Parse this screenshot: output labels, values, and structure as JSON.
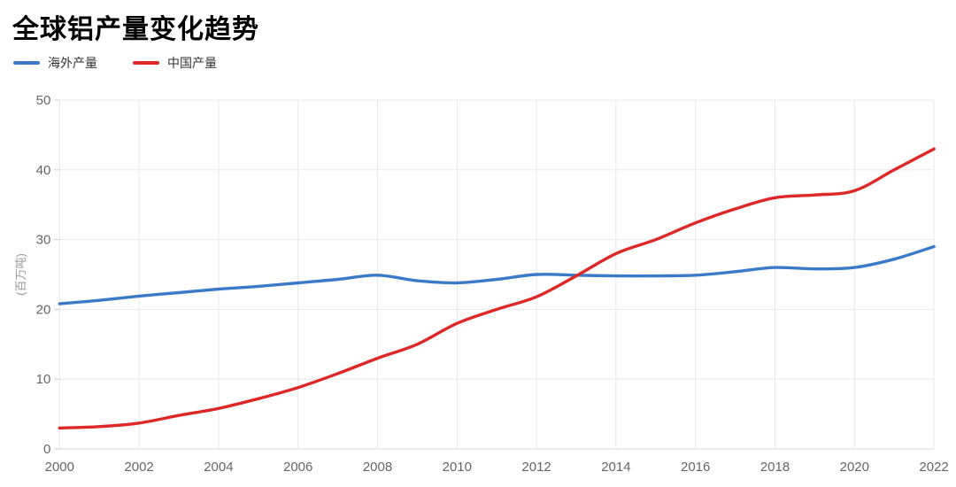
{
  "chart_data": {
    "type": "line",
    "title": "全球铝产量变化趋势",
    "xlabel": "",
    "ylabel": "(百万吨)",
    "xlim": [
      2000,
      2022
    ],
    "ylim": [
      0,
      50
    ],
    "y_ticks": [
      0,
      10,
      20,
      30,
      40,
      50
    ],
    "x_tick_labels": [
      "2000",
      "2002",
      "2004",
      "2006",
      "2008",
      "2010",
      "2012",
      "2014",
      "2016",
      "2018",
      "2020",
      "2022"
    ],
    "grid": true,
    "legend_position": "top-left",
    "x": [
      2000,
      2001,
      2002,
      2003,
      2004,
      2005,
      2006,
      2007,
      2008,
      2009,
      2010,
      2011,
      2012,
      2013,
      2014,
      2015,
      2016,
      2017,
      2018,
      2019,
      2020,
      2021,
      2022
    ],
    "series": [
      {
        "id": "overseas",
        "name": "海外产量",
        "color": "#3a7ac8",
        "values": [
          20.8,
          21.3,
          21.9,
          22.4,
          22.9,
          23.3,
          23.8,
          24.3,
          24.9,
          24.1,
          23.8,
          24.3,
          25.0,
          24.9,
          24.8,
          24.8,
          24.9,
          25.4,
          26.0,
          25.8,
          26.0,
          27.2,
          29.0
        ]
      },
      {
        "id": "china",
        "name": "中国产量",
        "color": "#de2828",
        "values": [
          3.0,
          3.2,
          3.7,
          4.8,
          5.8,
          7.2,
          8.8,
          10.8,
          13.0,
          15.0,
          18.0,
          20.0,
          21.8,
          24.8,
          28.0,
          30.0,
          32.4,
          34.4,
          36.0,
          36.4,
          37.0,
          40.0,
          43.0
        ]
      }
    ],
    "style": {
      "grid_color": "#e8e8e8",
      "axis_line_color": "#d9d9d9",
      "tick_color": "#cccccc",
      "tick_label_color": "#666666",
      "unit_label_color": "#999999",
      "line_width": 3.4
    }
  }
}
